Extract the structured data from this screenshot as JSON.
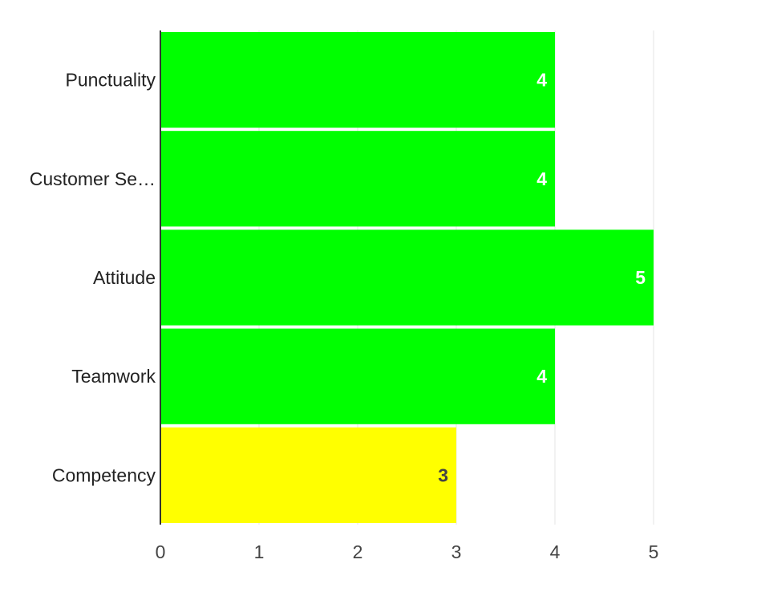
{
  "chart_data": {
    "type": "bar",
    "orientation": "horizontal",
    "title": "",
    "xlabel": "",
    "ylabel": "",
    "categories": [
      "Punctuality",
      "Customer Se…",
      "Attitude",
      "Teamwork",
      "Competency"
    ],
    "values": [
      4,
      4,
      5,
      4,
      3
    ],
    "bar_colors": [
      "#00ff00",
      "#00ff00",
      "#00ff00",
      "#00ff00",
      "#ffff00"
    ],
    "value_label_colors": [
      "#ffffff",
      "#ffffff",
      "#ffffff",
      "#ffffff",
      "#444444"
    ],
    "x_ticks": [
      "0",
      "1",
      "2",
      "3",
      "4",
      "5"
    ],
    "xlim": [
      0,
      5.8
    ],
    "grid": true,
    "legend": "none"
  }
}
